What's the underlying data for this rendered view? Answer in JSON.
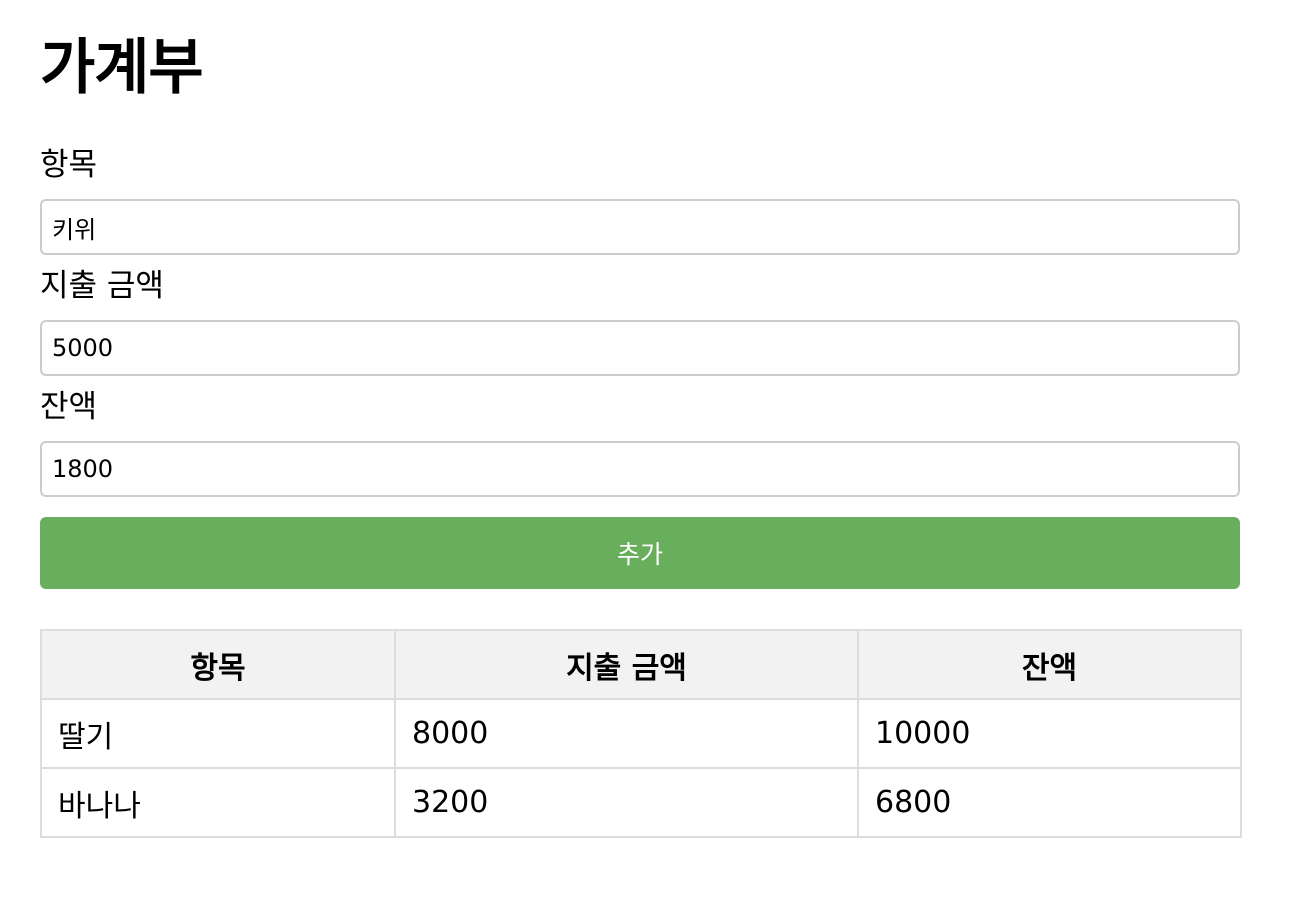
{
  "page": {
    "title": "가계부"
  },
  "form": {
    "item_label": "항목",
    "item_value": "키위",
    "spend_label": "지출 금액",
    "spend_value": "5000",
    "balance_label": "잔액",
    "balance_value": "1800",
    "add_button_label": "추가"
  },
  "table": {
    "headers": [
      "항목",
      "지출 금액",
      "잔액"
    ],
    "rows": [
      [
        "딸기",
        "8000",
        "10000"
      ],
      [
        "바나나",
        "3200",
        "6800"
      ]
    ]
  },
  "colors": {
    "accent": "#69ae5c",
    "header_bg": "#f2f2f2",
    "border": "#dddddd"
  }
}
